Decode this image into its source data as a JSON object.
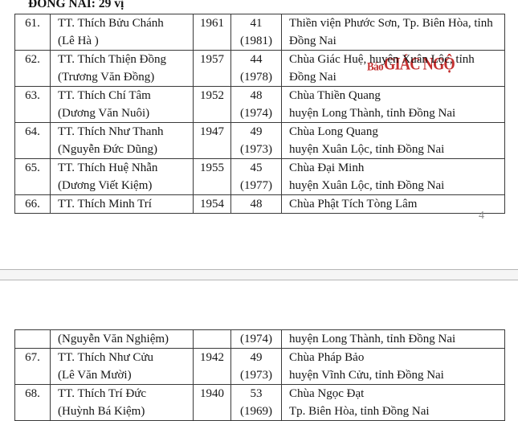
{
  "document": {
    "title": "ĐỒNG NAI: 29 vị",
    "page_number": "4"
  },
  "watermark": {
    "prefix": "Báo",
    "main": "GIÁC NGỘ",
    "color": "#bf2020"
  },
  "tables": {
    "page4": {
      "rows": [
        {
          "num": "61.",
          "name": [
            "TT. Thích Bửu Chánh",
            "(Lê Hà )"
          ],
          "year": "1961",
          "age": [
            "41",
            "(1981)"
          ],
          "place": [
            "Thiền viện Phước Sơn, Tp. Biên Hòa, tỉnh",
            "Đồng Nai"
          ]
        },
        {
          "num": "62.",
          "name": [
            "TT. Thích Thiện Đồng",
            "(Trương Văn Đồng)"
          ],
          "year": "1957",
          "age": [
            "44",
            "(1978)"
          ],
          "place": [
            "Chùa Giác Huệ, huyện Xuân Lộc, tỉnh",
            "Đồng Nai"
          ]
        },
        {
          "num": "63.",
          "name": [
            "TT. Thích Chí Tâm",
            "(Dương Văn Nuôi)"
          ],
          "year": "1952",
          "age": [
            "48",
            "(1974)"
          ],
          "place": [
            "Chùa Thiền Quang",
            "huyện Long Thành, tỉnh Đồng Nai"
          ]
        },
        {
          "num": "64.",
          "name": [
            "TT. Thích Như Thanh",
            "(Nguyễn Đức Dũng)"
          ],
          "year": "1947",
          "age": [
            "49",
            "(1973)"
          ],
          "place": [
            "Chùa Long Quang",
            "huyện Xuân Lộc, tỉnh Đồng Nai"
          ]
        },
        {
          "num": "65.",
          "name": [
            "TT. Thích Huệ Nhẫn",
            "(Dương Viết Kiệm)"
          ],
          "year": "1955",
          "age": [
            "45",
            "(1977)"
          ],
          "place": [
            "Chùa Đại Minh",
            "huyện Xuân Lộc, tỉnh Đồng Nai"
          ]
        },
        {
          "num": "66.",
          "name": [
            "TT. Thích Minh Trí"
          ],
          "year": "1954",
          "age": [
            "48"
          ],
          "place": [
            "Chùa Phật Tích Tòng Lâm"
          ]
        }
      ]
    },
    "page5": {
      "rows": [
        {
          "num": "",
          "name": [
            "(Nguyễn Văn Nghiệm)"
          ],
          "year": "",
          "age": [
            "(1974)"
          ],
          "place": [
            "huyện Long Thành, tỉnh Đồng Nai"
          ]
        },
        {
          "num": "67.",
          "name": [
            "TT. Thích Như Cửu",
            "(Lê Văn Mười)"
          ],
          "year": "1942",
          "age": [
            "49",
            "(1973)"
          ],
          "place": [
            "Chùa Pháp Bảo",
            "huyện Vĩnh Cửu, tỉnh Đồng Nai"
          ]
        },
        {
          "num": "68.",
          "name": [
            "TT. Thích Trí Đức",
            "(Huỳnh Bá Kiệm)"
          ],
          "year": "1940",
          "age": [
            "53",
            "(1969)"
          ],
          "place": [
            "Chùa Ngọc Đạt",
            "Tp. Biên Hòa, tỉnh Đồng Nai"
          ]
        }
      ]
    }
  }
}
